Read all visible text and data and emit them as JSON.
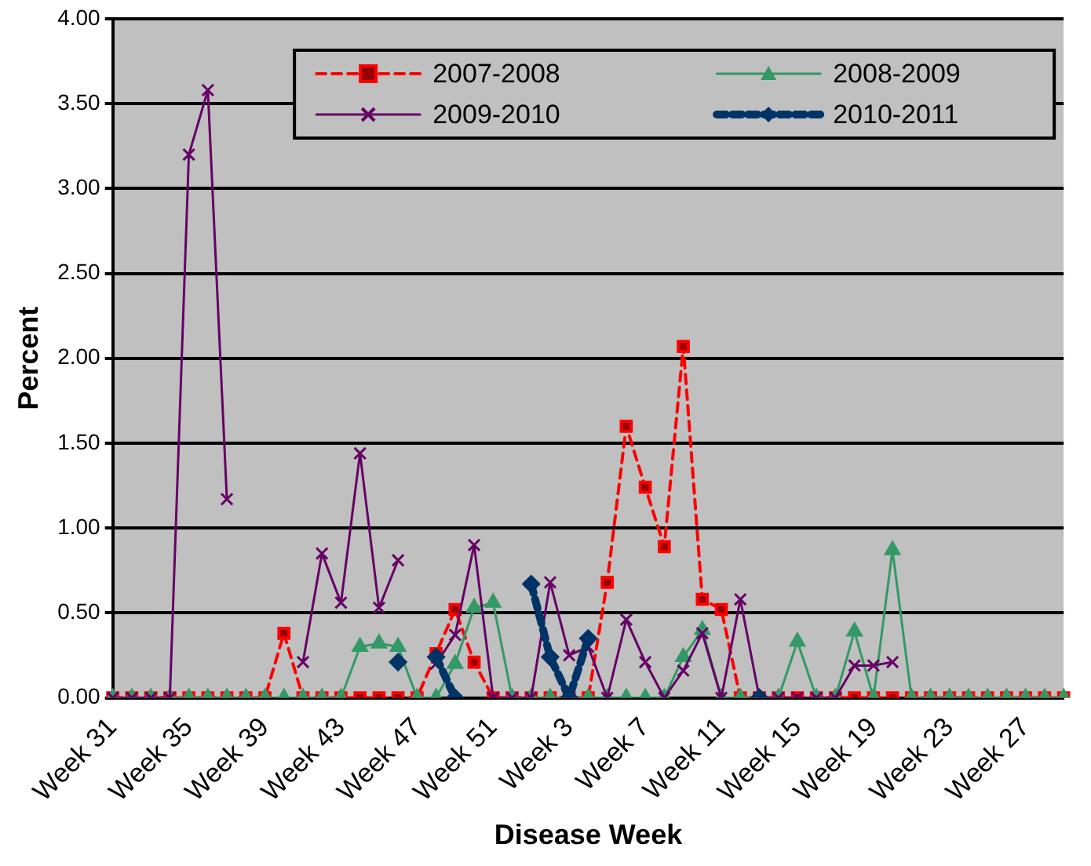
{
  "chart_data": {
    "type": "line",
    "xlabel": "Disease Week",
    "ylabel": "Percent",
    "categories": [
      "Week 31",
      null,
      null,
      null,
      "Week 35",
      null,
      null,
      null,
      "Week 39",
      null,
      null,
      null,
      "Week 43",
      null,
      null,
      null,
      "Week 47",
      null,
      null,
      null,
      "Week 51",
      null,
      null,
      null,
      "Week 3",
      null,
      null,
      null,
      "Week 7",
      null,
      null,
      null,
      "Week 11",
      null,
      null,
      null,
      "Week 15",
      null,
      null,
      null,
      "Week 19",
      null,
      null,
      null,
      "Week 23",
      null,
      null,
      null,
      "Week 27",
      null,
      null
    ],
    "series": [
      {
        "name": "2007-2008",
        "color": "#ff0000",
        "marker": "square",
        "line_style": "dashed",
        "values": [
          0,
          0,
          0,
          0,
          0,
          0,
          0,
          0,
          0,
          0.38,
          0,
          0,
          0,
          0,
          0,
          0,
          0,
          0.26,
          0.52,
          0.21,
          0,
          0,
          0,
          0,
          0,
          0,
          0.68,
          1.6,
          1.24,
          0.89,
          2.07,
          0.58,
          0.52,
          0,
          0,
          0,
          0,
          0,
          0,
          0,
          0,
          0,
          0,
          0,
          0,
          0,
          0,
          0,
          0,
          0,
          0
        ]
      },
      {
        "name": "2008-2009",
        "color": "#339966",
        "marker": "triangle",
        "line_style": "solid",
        "values": [
          0,
          0,
          0,
          0,
          0,
          0,
          0,
          0,
          0,
          0,
          0,
          0,
          0,
          0.3,
          0.32,
          0.3,
          0,
          0,
          0.2,
          0.53,
          0.56,
          0,
          0,
          0,
          0,
          0,
          0,
          0,
          0,
          0,
          0.24,
          0.4,
          0,
          0,
          0,
          0,
          0.33,
          0,
          0,
          0.39,
          0,
          0.87,
          0,
          0,
          0,
          0,
          0,
          0,
          0,
          0,
          0
        ]
      },
      {
        "name": "2009-2010",
        "color": "#660066",
        "marker": "cross",
        "line_style": "solid",
        "values": [
          0,
          0,
          0,
          0,
          3.2,
          3.58,
          1.17,
          null,
          null,
          null,
          0.21,
          0.85,
          0.56,
          1.44,
          0.53,
          0.81,
          null,
          0.2,
          0.37,
          0.9,
          0,
          0,
          0,
          0.68,
          0.25,
          0.3,
          0,
          0.46,
          0.21,
          0,
          0.16,
          0.38,
          0,
          0.58,
          0,
          0,
          0,
          0,
          0,
          0.19,
          0.19,
          0.21,
          null,
          null,
          null,
          null,
          null,
          null,
          null,
          null,
          null
        ]
      },
      {
        "name": "2010-2011",
        "color": "#003366",
        "marker": "diamond",
        "line_style": "dashed",
        "values": [
          null,
          null,
          null,
          null,
          null,
          null,
          null,
          null,
          null,
          null,
          null,
          null,
          null,
          null,
          null,
          0.21,
          null,
          0.24,
          0,
          null,
          null,
          null,
          0.67,
          0.24,
          0,
          0.35,
          null,
          null,
          null,
          null,
          null,
          null,
          null,
          null,
          0,
          null,
          null,
          null,
          null,
          null,
          null,
          null,
          null,
          null,
          null,
          null,
          null,
          null,
          null,
          null,
          null
        ]
      }
    ],
    "ylim": [
      0,
      4
    ],
    "yticks": [
      {
        "value": 0,
        "label": "0.00"
      },
      {
        "value": 0.5,
        "label": "0.50"
      },
      {
        "value": 1,
        "label": "1.00"
      },
      {
        "value": 1.5,
        "label": "1.50"
      },
      {
        "value": 2,
        "label": "2.00"
      },
      {
        "value": 2.5,
        "label": "2.50"
      },
      {
        "value": 3,
        "label": "3.00"
      },
      {
        "value": 3.5,
        "label": "3.50"
      },
      {
        "value": 4,
        "label": "4.00"
      }
    ],
    "grid": "y",
    "legend": "top right"
  }
}
